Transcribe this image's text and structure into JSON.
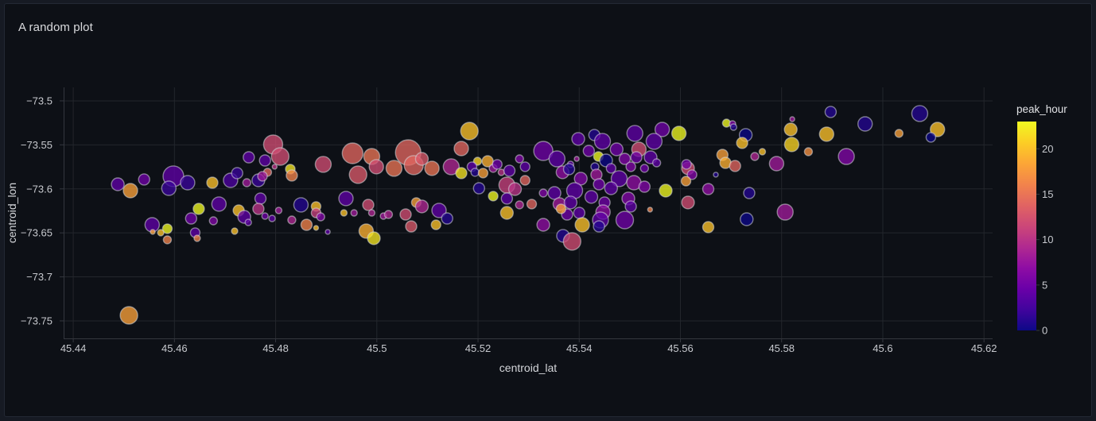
{
  "panel": {
    "title": "A random plot"
  },
  "colors": {
    "page_bg": "#161a23",
    "panel_bg": "#0d1016",
    "panel_border": "#232834",
    "grid": "#23262c",
    "axis_line": "#34373e",
    "tick_text": "#c7c9ce",
    "axis_title_text": "#d4d6da",
    "title_text": "#d9dadd",
    "bubble_stroke": "#d4d6d9"
  },
  "chart_data": {
    "type": "scatter",
    "title": "A random plot",
    "xlabel": "centroid_lat",
    "ylabel": "centroid_lon",
    "grid": true,
    "xlim": [
      45.4381,
      45.6217
    ],
    "ylim": [
      -73.7699,
      -73.4847
    ],
    "x_ticks": [
      {
        "v": 45.44,
        "label": "45.44"
      },
      {
        "v": 45.46,
        "label": "45.46"
      },
      {
        "v": 45.48,
        "label": "45.48"
      },
      {
        "v": 45.5,
        "label": "45.5"
      },
      {
        "v": 45.52,
        "label": "45.52"
      },
      {
        "v": 45.54,
        "label": "45.54"
      },
      {
        "v": 45.56,
        "label": "45.56"
      },
      {
        "v": 45.58,
        "label": "45.58"
      },
      {
        "v": 45.6,
        "label": "45.6"
      },
      {
        "v": 45.62,
        "label": "45.62"
      }
    ],
    "y_ticks": [
      {
        "v": -73.5,
        "label": "−73.5"
      },
      {
        "v": -73.55,
        "label": "−73.55"
      },
      {
        "v": -73.6,
        "label": "−73.6"
      },
      {
        "v": -73.65,
        "label": "−73.65"
      },
      {
        "v": -73.7,
        "label": "−73.7"
      },
      {
        "v": -73.75,
        "label": "−73.75"
      }
    ],
    "colorbar": {
      "title": "peak_hour",
      "min": 0,
      "max": 23,
      "ticks": [
        0,
        5,
        10,
        15,
        20
      ],
      "colormap": "plasma",
      "stops": [
        "#0d0887",
        "#41049d",
        "#6a00a8",
        "#8f0da4",
        "#b12a90",
        "#cc4778",
        "#e16462",
        "#f2844b",
        "#fca636",
        "#fcce25",
        "#f0f921"
      ]
    },
    "columns": [
      "centroid_lat",
      "centroid_lon",
      "peak_hour",
      "radius_px"
    ],
    "points": [
      [
        45.4488,
        -73.5948,
        4,
        8
      ],
      [
        45.4513,
        -73.602,
        18,
        9
      ],
      [
        45.454,
        -73.5893,
        5,
        7
      ],
      [
        45.4598,
        -73.5857,
        4,
        13
      ],
      [
        45.4589,
        -73.5993,
        2,
        9
      ],
      [
        45.4626,
        -73.593,
        2,
        9
      ],
      [
        45.4675,
        -73.593,
        20,
        7
      ],
      [
        45.4556,
        -73.6408,
        4,
        9
      ],
      [
        45.4557,
        -73.6489,
        18,
        3
      ],
      [
        45.4586,
        -73.6453,
        23,
        6
      ],
      [
        45.4573,
        -73.6498,
        20,
        4
      ],
      [
        45.4586,
        -73.6579,
        16,
        5
      ],
      [
        45.4633,
        -73.6336,
        5,
        7
      ],
      [
        45.4648,
        -73.6227,
        23,
        7
      ],
      [
        45.4641,
        -73.6498,
        4,
        6
      ],
      [
        45.4645,
        -73.6561,
        16,
        4
      ],
      [
        45.4677,
        -73.6363,
        6,
        5
      ],
      [
        45.4688,
        -73.6173,
        4,
        9
      ],
      [
        45.4719,
        -73.648,
        20,
        4
      ],
      [
        45.4711,
        -73.5903,
        3,
        9
      ],
      [
        45.4724,
        -73.5821,
        2,
        7
      ],
      [
        45.4743,
        -73.593,
        8,
        5
      ],
      [
        45.4766,
        -73.5903,
        2,
        8
      ],
      [
        45.4747,
        -73.5641,
        4,
        7
      ],
      [
        45.4779,
        -73.5677,
        4,
        7
      ],
      [
        45.4795,
        -73.5496,
        12,
        12
      ],
      [
        45.4809,
        -73.5632,
        12,
        11
      ],
      [
        45.4784,
        -73.5812,
        14,
        5
      ],
      [
        45.4798,
        -73.5749,
        10,
        3
      ],
      [
        45.4829,
        -73.5776,
        22,
        6
      ],
      [
        45.4832,
        -73.5848,
        16,
        7
      ],
      [
        45.4774,
        -73.5857,
        8,
        6
      ],
      [
        45.4894,
        -73.5722,
        12,
        10
      ],
      [
        45.477,
        -73.611,
        4,
        7
      ],
      [
        45.4766,
        -73.6227,
        10,
        7
      ],
      [
        45.4779,
        -73.6309,
        5,
        4
      ],
      [
        45.4793,
        -73.6336,
        4,
        4
      ],
      [
        45.4806,
        -73.6245,
        8,
        4
      ],
      [
        45.4727,
        -73.6245,
        20,
        7
      ],
      [
        45.4738,
        -73.6318,
        4,
        8
      ],
      [
        45.4746,
        -73.6381,
        4,
        4
      ],
      [
        45.4832,
        -73.6354,
        9,
        5
      ],
      [
        45.485,
        -73.6182,
        1,
        9
      ],
      [
        45.488,
        -73.62,
        20,
        6
      ],
      [
        45.488,
        -73.6273,
        11,
        6
      ],
      [
        45.4889,
        -73.6318,
        6,
        5
      ],
      [
        45.4861,
        -73.6408,
        16,
        7
      ],
      [
        45.488,
        -73.6444,
        20,
        3
      ],
      [
        45.4903,
        -73.6489,
        4,
        3
      ],
      [
        45.4952,
        -73.5596,
        14,
        13
      ],
      [
        45.499,
        -73.5632,
        15,
        10
      ],
      [
        45.4999,
        -73.5749,
        12,
        9
      ],
      [
        45.5062,
        -73.5587,
        14,
        16
      ],
      [
        45.5034,
        -73.5767,
        15,
        10
      ],
      [
        45.5073,
        -73.5731,
        14,
        12
      ],
      [
        45.5089,
        -73.5659,
        13,
        8
      ],
      [
        45.5109,
        -73.5767,
        15,
        9
      ],
      [
        45.4963,
        -73.5839,
        13,
        11
      ],
      [
        45.5147,
        -73.5749,
        9,
        10
      ],
      [
        45.5183,
        -73.5343,
        20,
        11
      ],
      [
        45.5167,
        -73.5542,
        14,
        9
      ],
      [
        45.5167,
        -73.5821,
        22,
        7
      ],
      [
        45.5199,
        -73.5686,
        21,
        5
      ],
      [
        45.5219,
        -73.5686,
        19,
        7
      ],
      [
        45.5188,
        -73.5749,
        4,
        6
      ],
      [
        45.5194,
        -73.5812,
        1,
        5
      ],
      [
        45.521,
        -73.5821,
        18,
        6
      ],
      [
        45.523,
        -73.5767,
        8,
        5
      ],
      [
        45.5238,
        -73.5722,
        5,
        6
      ],
      [
        45.5246,
        -73.5812,
        10,
        4
      ],
      [
        45.5262,
        -73.5794,
        4,
        7
      ],
      [
        45.5282,
        -73.5659,
        6,
        5
      ],
      [
        45.5293,
        -73.5749,
        4,
        6
      ],
      [
        45.5329,
        -73.5569,
        5,
        12
      ],
      [
        45.5356,
        -73.5659,
        4,
        10
      ],
      [
        45.5367,
        -73.5812,
        7,
        8
      ],
      [
        45.5293,
        -73.5903,
        14,
        6
      ],
      [
        45.5257,
        -73.5957,
        11,
        10
      ],
      [
        45.5273,
        -73.6002,
        10,
        8
      ],
      [
        45.5202,
        -73.5993,
        1,
        7
      ],
      [
        45.523,
        -73.6083,
        23,
        6
      ],
      [
        45.5257,
        -73.611,
        4,
        7
      ],
      [
        45.5257,
        -73.6273,
        20,
        8
      ],
      [
        45.5282,
        -73.6182,
        9,
        5
      ],
      [
        45.5306,
        -73.6173,
        14,
        6
      ],
      [
        45.5329,
        -73.6047,
        6,
        5
      ],
      [
        45.5351,
        -73.6047,
        4,
        8
      ],
      [
        45.5361,
        -73.6173,
        8,
        8
      ],
      [
        45.5376,
        -73.6291,
        5,
        7
      ],
      [
        45.5329,
        -73.6408,
        7,
        8
      ],
      [
        45.5368,
        -73.6534,
        1,
        8
      ],
      [
        45.4939,
        -73.611,
        4,
        9
      ],
      [
        45.4935,
        -73.6273,
        20,
        4
      ],
      [
        45.4955,
        -73.6273,
        8,
        4
      ],
      [
        45.4983,
        -73.6182,
        12,
        7
      ],
      [
        45.499,
        -73.6273,
        9,
        4
      ],
      [
        45.5013,
        -73.6309,
        8,
        4
      ],
      [
        45.5023,
        -73.6291,
        9,
        5
      ],
      [
        45.5057,
        -73.6291,
        12,
        7
      ],
      [
        45.5078,
        -73.6155,
        18,
        6
      ],
      [
        45.5089,
        -73.62,
        9,
        8
      ],
      [
        45.5068,
        -73.6426,
        13,
        7
      ],
      [
        45.5123,
        -73.6245,
        4,
        9
      ],
      [
        45.5117,
        -73.6408,
        20,
        6
      ],
      [
        45.5139,
        -73.6336,
        1,
        7
      ],
      [
        45.4979,
        -73.648,
        19,
        9
      ],
      [
        45.4994,
        -73.6561,
        22,
        8
      ],
      [
        45.5398,
        -73.5433,
        4,
        8
      ],
      [
        45.543,
        -73.5388,
        1,
        7
      ],
      [
        45.5446,
        -73.546,
        4,
        10
      ],
      [
        45.5419,
        -73.5569,
        5,
        7
      ],
      [
        45.5438,
        -73.5632,
        23,
        6
      ],
      [
        45.5453,
        -73.5677,
        0,
        8
      ],
      [
        45.5474,
        -73.5551,
        5,
        8
      ],
      [
        45.551,
        -73.537,
        4,
        10
      ],
      [
        45.5564,
        -73.5325,
        5,
        9
      ],
      [
        45.5597,
        -73.537,
        23,
        9
      ],
      [
        45.5548,
        -73.546,
        4,
        10
      ],
      [
        45.5518,
        -73.5551,
        12,
        9
      ],
      [
        45.5541,
        -73.5641,
        4,
        8
      ],
      [
        45.5513,
        -73.5641,
        5,
        7
      ],
      [
        45.549,
        -73.5659,
        6,
        7
      ],
      [
        45.5395,
        -73.5659,
        8,
        3
      ],
      [
        45.5383,
        -73.5722,
        4,
        4
      ],
      [
        45.5431,
        -73.5749,
        1,
        5
      ],
      [
        45.5463,
        -73.5767,
        4,
        6
      ],
      [
        45.5502,
        -73.5749,
        6,
        6
      ],
      [
        45.5529,
        -73.5767,
        5,
        5
      ],
      [
        45.5553,
        -73.5704,
        4,
        5
      ],
      [
        45.5434,
        -73.5839,
        8,
        7
      ],
      [
        45.5479,
        -73.5884,
        4,
        10
      ],
      [
        45.5403,
        -73.5884,
        6,
        8
      ],
      [
        45.538,
        -73.5776,
        1,
        7
      ],
      [
        45.5391,
        -73.602,
        4,
        10
      ],
      [
        45.5439,
        -73.5948,
        5,
        7
      ],
      [
        45.5463,
        -73.5993,
        4,
        8
      ],
      [
        45.5508,
        -73.593,
        7,
        9
      ],
      [
        45.5529,
        -73.5975,
        6,
        7
      ],
      [
        45.5424,
        -73.6092,
        4,
        8
      ],
      [
        45.545,
        -73.6155,
        5,
        7
      ],
      [
        45.5497,
        -73.611,
        6,
        8
      ],
      [
        45.5383,
        -73.6155,
        4,
        8
      ],
      [
        45.5364,
        -73.6227,
        18,
        6
      ],
      [
        45.54,
        -73.6273,
        4,
        7
      ],
      [
        45.5447,
        -73.6264,
        7,
        9
      ],
      [
        45.5502,
        -73.62,
        4,
        7
      ],
      [
        45.5442,
        -73.6354,
        4,
        10
      ],
      [
        45.549,
        -73.6354,
        5,
        11
      ],
      [
        45.5406,
        -73.6408,
        20,
        9
      ],
      [
        45.5439,
        -73.6426,
        1,
        7
      ],
      [
        45.5386,
        -73.6597,
        12,
        11
      ],
      [
        45.554,
        -73.6236,
        16,
        3
      ],
      [
        45.5571,
        -73.602,
        23,
        8
      ],
      [
        45.5615,
        -73.5767,
        12,
        8
      ],
      [
        45.5623,
        -73.5839,
        6,
        6
      ],
      [
        45.567,
        -73.5839,
        1,
        3
      ],
      [
        45.5611,
        -73.5912,
        18,
        6
      ],
      [
        45.5655,
        -73.6002,
        7,
        7
      ],
      [
        45.5612,
        -73.5722,
        5,
        6
      ],
      [
        45.5691,
        -73.5253,
        23,
        5
      ],
      [
        45.5703,
        -73.5262,
        6,
        4
      ],
      [
        45.5705,
        -73.5298,
        1,
        4
      ],
      [
        45.5729,
        -73.5388,
        0,
        8
      ],
      [
        45.5722,
        -73.5478,
        20,
        7
      ],
      [
        45.5683,
        -73.5614,
        18,
        7
      ],
      [
        45.5689,
        -73.5704,
        19,
        7
      ],
      [
        45.5708,
        -73.574,
        14,
        7
      ],
      [
        45.5747,
        -73.5632,
        9,
        5
      ],
      [
        45.5762,
        -73.5578,
        20,
        4
      ],
      [
        45.579,
        -73.5713,
        8,
        9
      ],
      [
        45.5736,
        -73.6047,
        1,
        7
      ],
      [
        45.5615,
        -73.6155,
        12,
        8
      ],
      [
        45.5655,
        -73.6435,
        20,
        7
      ],
      [
        45.5731,
        -73.6345,
        0,
        8
      ],
      [
        45.5807,
        -73.6264,
        8,
        10
      ],
      [
        45.5821,
        -73.5208,
        8,
        3
      ],
      [
        45.5818,
        -73.5325,
        20,
        8
      ],
      [
        45.582,
        -73.5496,
        21,
        9
      ],
      [
        45.5853,
        -73.5578,
        17,
        5
      ],
      [
        45.5897,
        -73.5126,
        1,
        7
      ],
      [
        45.5889,
        -73.5379,
        20,
        9
      ],
      [
        45.5965,
        -73.5262,
        1,
        9
      ],
      [
        45.5928,
        -73.5632,
        6,
        10
      ],
      [
        45.6032,
        -73.537,
        18,
        5
      ],
      [
        45.6073,
        -73.5144,
        1,
        10
      ],
      [
        45.6108,
        -73.5325,
        20,
        9
      ],
      [
        45.6095,
        -73.5415,
        0,
        6
      ],
      [
        45.451,
        -73.7437,
        18,
        11
      ]
    ]
  }
}
